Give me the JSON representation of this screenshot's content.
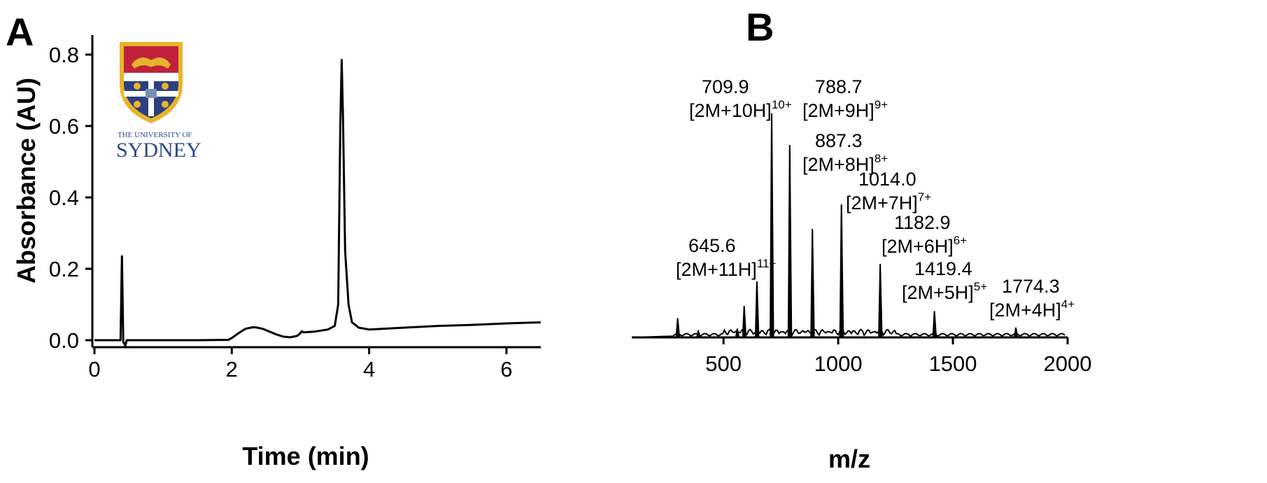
{
  "panels": {
    "a": "A",
    "b": "B"
  },
  "logo": {
    "line1": "THE UNIVERSITY OF",
    "line2": "SYDNEY"
  },
  "chart_data": [
    {
      "type": "line",
      "xlabel": "Time (min)",
      "ylabel": "Absorbance (AU)",
      "xlim": [
        0,
        6.5
      ],
      "ylim": [
        -0.02,
        0.86
      ],
      "x_ticks": [
        0,
        2,
        4,
        6
      ],
      "y_ticks": [
        0.0,
        0.2,
        0.4,
        0.6,
        0.8
      ],
      "y_tick_labels": [
        "0.0",
        "0.2",
        "0.4",
        "0.6",
        "0.8"
      ],
      "grid": false,
      "series": [
        {
          "x": [
            0,
            0.38,
            0.4,
            0.42,
            0.45,
            0.47,
            0.6,
            1.0,
            1.5,
            1.95,
            2.0,
            2.1,
            2.2,
            2.3,
            2.35,
            2.45,
            2.55,
            2.65,
            2.75,
            2.85,
            2.95,
            3.0,
            3.02,
            3.05,
            3.2,
            3.4,
            3.5,
            3.55,
            3.58,
            3.6,
            3.62,
            3.65,
            3.7,
            3.75,
            3.85,
            4.0,
            4.5,
            5.0,
            5.5,
            6.0,
            6.5
          ],
          "y": [
            0.0,
            0.0,
            0.235,
            -0.005,
            -0.015,
            0.0,
            0.0,
            0.0,
            0.0,
            0.001,
            0.006,
            0.02,
            0.032,
            0.036,
            0.036,
            0.032,
            0.024,
            0.016,
            0.01,
            0.008,
            0.012,
            0.02,
            0.025,
            0.022,
            0.024,
            0.03,
            0.04,
            0.1,
            0.6,
            0.785,
            0.62,
            0.25,
            0.1,
            0.05,
            0.035,
            0.03,
            0.035,
            0.04,
            0.043,
            0.047,
            0.05
          ]
        }
      ]
    },
    {
      "type": "bar",
      "xlabel": "m/z",
      "ylabel": "",
      "xlim": [
        100,
        2000
      ],
      "ylim": [
        0,
        1
      ],
      "x_ticks": [
        500,
        1000,
        1500,
        2000
      ],
      "grid": false,
      "peaks": [
        {
          "mz": 300,
          "rel": 0.055
        },
        {
          "mz": 390,
          "rel": 0.02
        },
        {
          "mz": 560,
          "rel": 0.025
        },
        {
          "mz": 590,
          "rel": 0.09
        },
        {
          "mz": 645.6,
          "rel": 0.16
        },
        {
          "mz": 709.9,
          "rel": 0.64
        },
        {
          "mz": 788.7,
          "rel": 0.55
        },
        {
          "mz": 887.3,
          "rel": 0.31
        },
        {
          "mz": 1014.0,
          "rel": 0.38
        },
        {
          "mz": 1182.9,
          "rel": 0.21
        },
        {
          "mz": 1419.4,
          "rel": 0.075
        },
        {
          "mz": 1774.3,
          "rel": 0.028
        }
      ],
      "annotations": [
        {
          "mz": "645.6",
          "ion": "[2M+11H]",
          "charge": "11+"
        },
        {
          "mz": "709.9",
          "ion": "[2M+10H]",
          "charge": "10+"
        },
        {
          "mz": "788.7",
          "ion": "[2M+9H]",
          "charge": "9+"
        },
        {
          "mz": "887.3",
          "ion": "[2M+8H]",
          "charge": "8+"
        },
        {
          "mz": "1014.0",
          "ion": "[2M+7H]",
          "charge": "7+"
        },
        {
          "mz": "1182.9",
          "ion": "[2M+6H]",
          "charge": "6+"
        },
        {
          "mz": "1419.4",
          "ion": "[2M+5H]",
          "charge": "5+"
        },
        {
          "mz": "1774.3",
          "ion": "[2M+4H]",
          "charge": "4+"
        }
      ]
    }
  ]
}
